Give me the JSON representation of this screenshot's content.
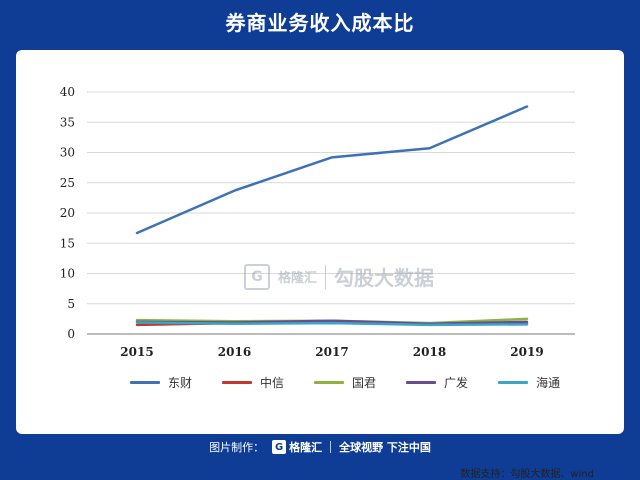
{
  "header": {
    "title": "券商业务收入成本比"
  },
  "watermark": {
    "logo_glyph": "G",
    "brand": "格隆汇",
    "product": "勾股大数据"
  },
  "source": "数据支持：勾股大数据、wind",
  "footer": {
    "made_by": "图片制作：",
    "logo_glyph": "G",
    "brand": "格隆汇",
    "slogan": "全球视野 下注中国"
  },
  "chart_data": {
    "type": "line",
    "title": "券商业务收入成本比",
    "xlabel": "",
    "ylabel": "",
    "x": [
      "2015",
      "2016",
      "2017",
      "2018",
      "2019"
    ],
    "ylim": [
      0,
      40
    ],
    "yticks": [
      0,
      5,
      10,
      15,
      20,
      25,
      30,
      35,
      40
    ],
    "grid": true,
    "legend_position": "bottom",
    "series": [
      {
        "name": "东财",
        "color": "#3d72b4",
        "values": [
          16.7,
          23.7,
          29.2,
          30.7,
          37.6
        ]
      },
      {
        "name": "中信",
        "color": "#c0392b",
        "values": [
          1.5,
          1.8,
          2.0,
          1.6,
          1.7
        ]
      },
      {
        "name": "国君",
        "color": "#8db33f",
        "values": [
          2.3,
          2.1,
          2.2,
          1.8,
          2.5
        ]
      },
      {
        "name": "广发",
        "color": "#6a4c93",
        "values": [
          2.0,
          1.9,
          2.2,
          1.7,
          2.0
        ]
      },
      {
        "name": "海通",
        "color": "#3aa5c7",
        "values": [
          1.9,
          1.7,
          1.8,
          1.5,
          1.6
        ]
      }
    ]
  }
}
